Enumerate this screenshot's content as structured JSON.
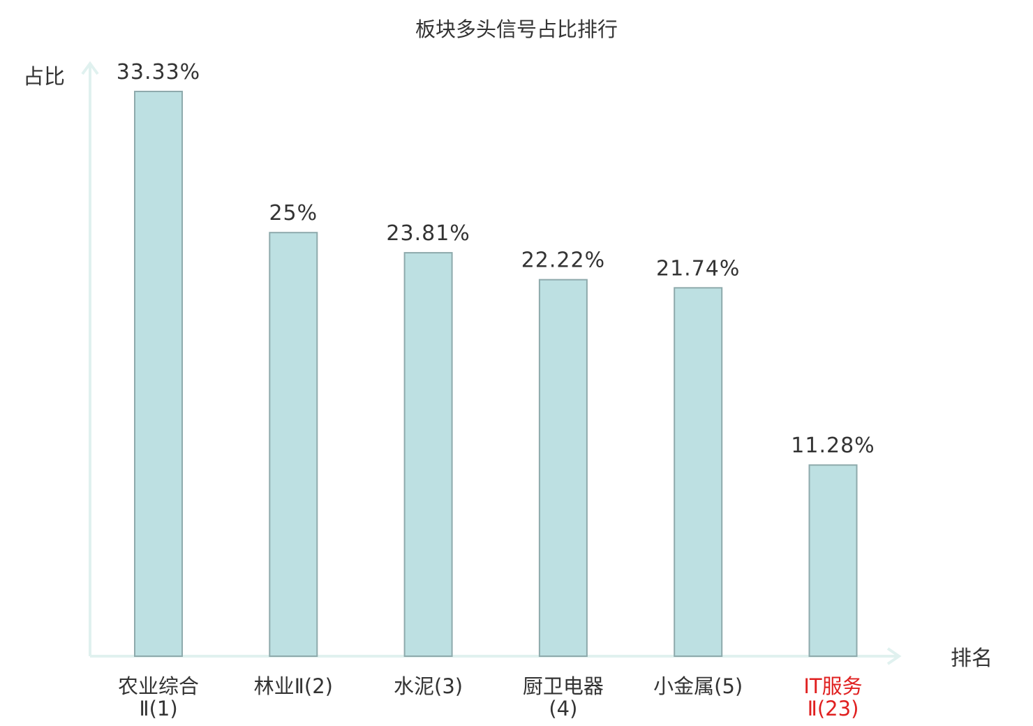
{
  "chart_data": {
    "type": "bar",
    "title": "板块多头信号占比排行",
    "ylabel": "占比",
    "xlabel": "排名",
    "categories": [
      {
        "name": "农业综合",
        "rank": "Ⅱ(1)"
      },
      {
        "name": "林业",
        "rank": "Ⅱ(2)"
      },
      {
        "name": "水泥",
        "rank": "(3)"
      },
      {
        "name": "厨卫电器",
        "rank": "(4)"
      },
      {
        "name": "小金属",
        "rank": "(5)"
      },
      {
        "name": "IT服务",
        "rank": "Ⅱ(23)"
      }
    ],
    "values": [
      33.33,
      25,
      23.81,
      22.22,
      21.74,
      11.28
    ],
    "value_labels": [
      "33.33%",
      "25%",
      "23.81%",
      "22.22%",
      "21.74%",
      "11.28%"
    ],
    "ylim": [
      0,
      35
    ],
    "grid": false,
    "highlight_index": 5,
    "colors": {
      "bar_fill": "#bde0e2",
      "bar_stroke": "#8eaaac",
      "axis": "#e0f1ef",
      "text": "#333333",
      "highlight_text": "#e02020"
    }
  }
}
